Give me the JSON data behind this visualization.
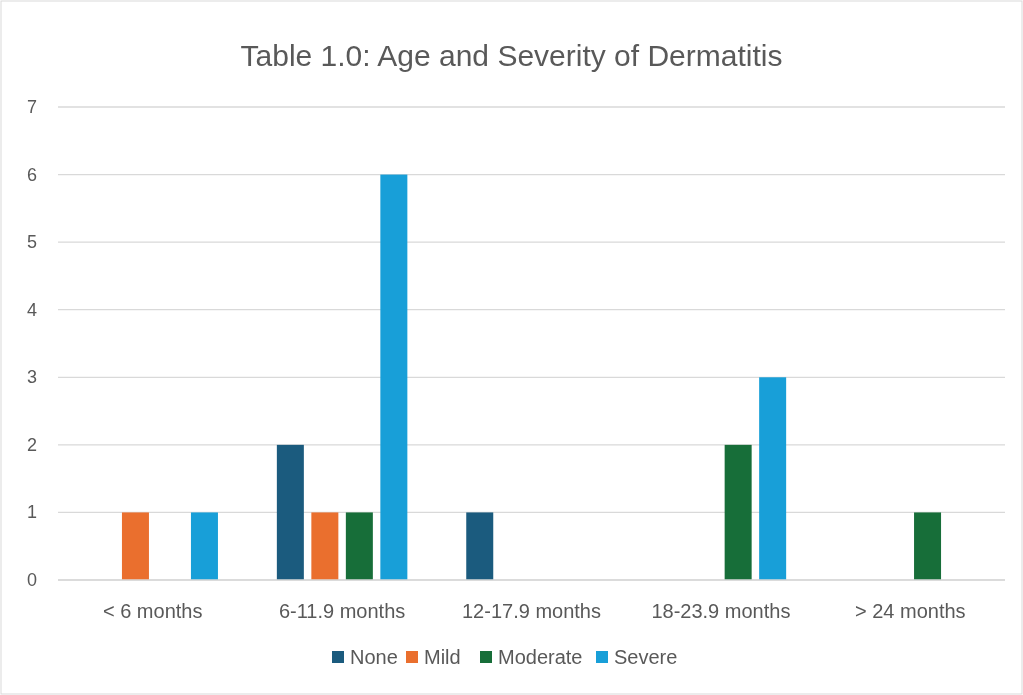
{
  "chart_data": {
    "type": "bar",
    "title": "Table 1.0: Age and Severity of Dermatitis",
    "categories": [
      "< 6 months",
      "6-11.9 months",
      "12-17.9 months",
      "18-23.9 months",
      "> 24 months"
    ],
    "series": [
      {
        "name": "None",
        "color": "#1b5b7e",
        "values": [
          0,
          2,
          1,
          0,
          0
        ]
      },
      {
        "name": "Mild",
        "color": "#ea6f2e",
        "values": [
          1,
          1,
          0,
          0,
          0
        ]
      },
      {
        "name": "Moderate",
        "color": "#176e39",
        "values": [
          0,
          1,
          0,
          2,
          1
        ]
      },
      {
        "name": "Severe",
        "color": "#189fd8",
        "values": [
          1,
          6,
          0,
          3,
          0
        ]
      }
    ],
    "ylim": [
      0,
      7
    ],
    "yticks": [
      0,
      1,
      2,
      3,
      4,
      5,
      6,
      7
    ],
    "grid": "y",
    "legend": "bottom"
  }
}
